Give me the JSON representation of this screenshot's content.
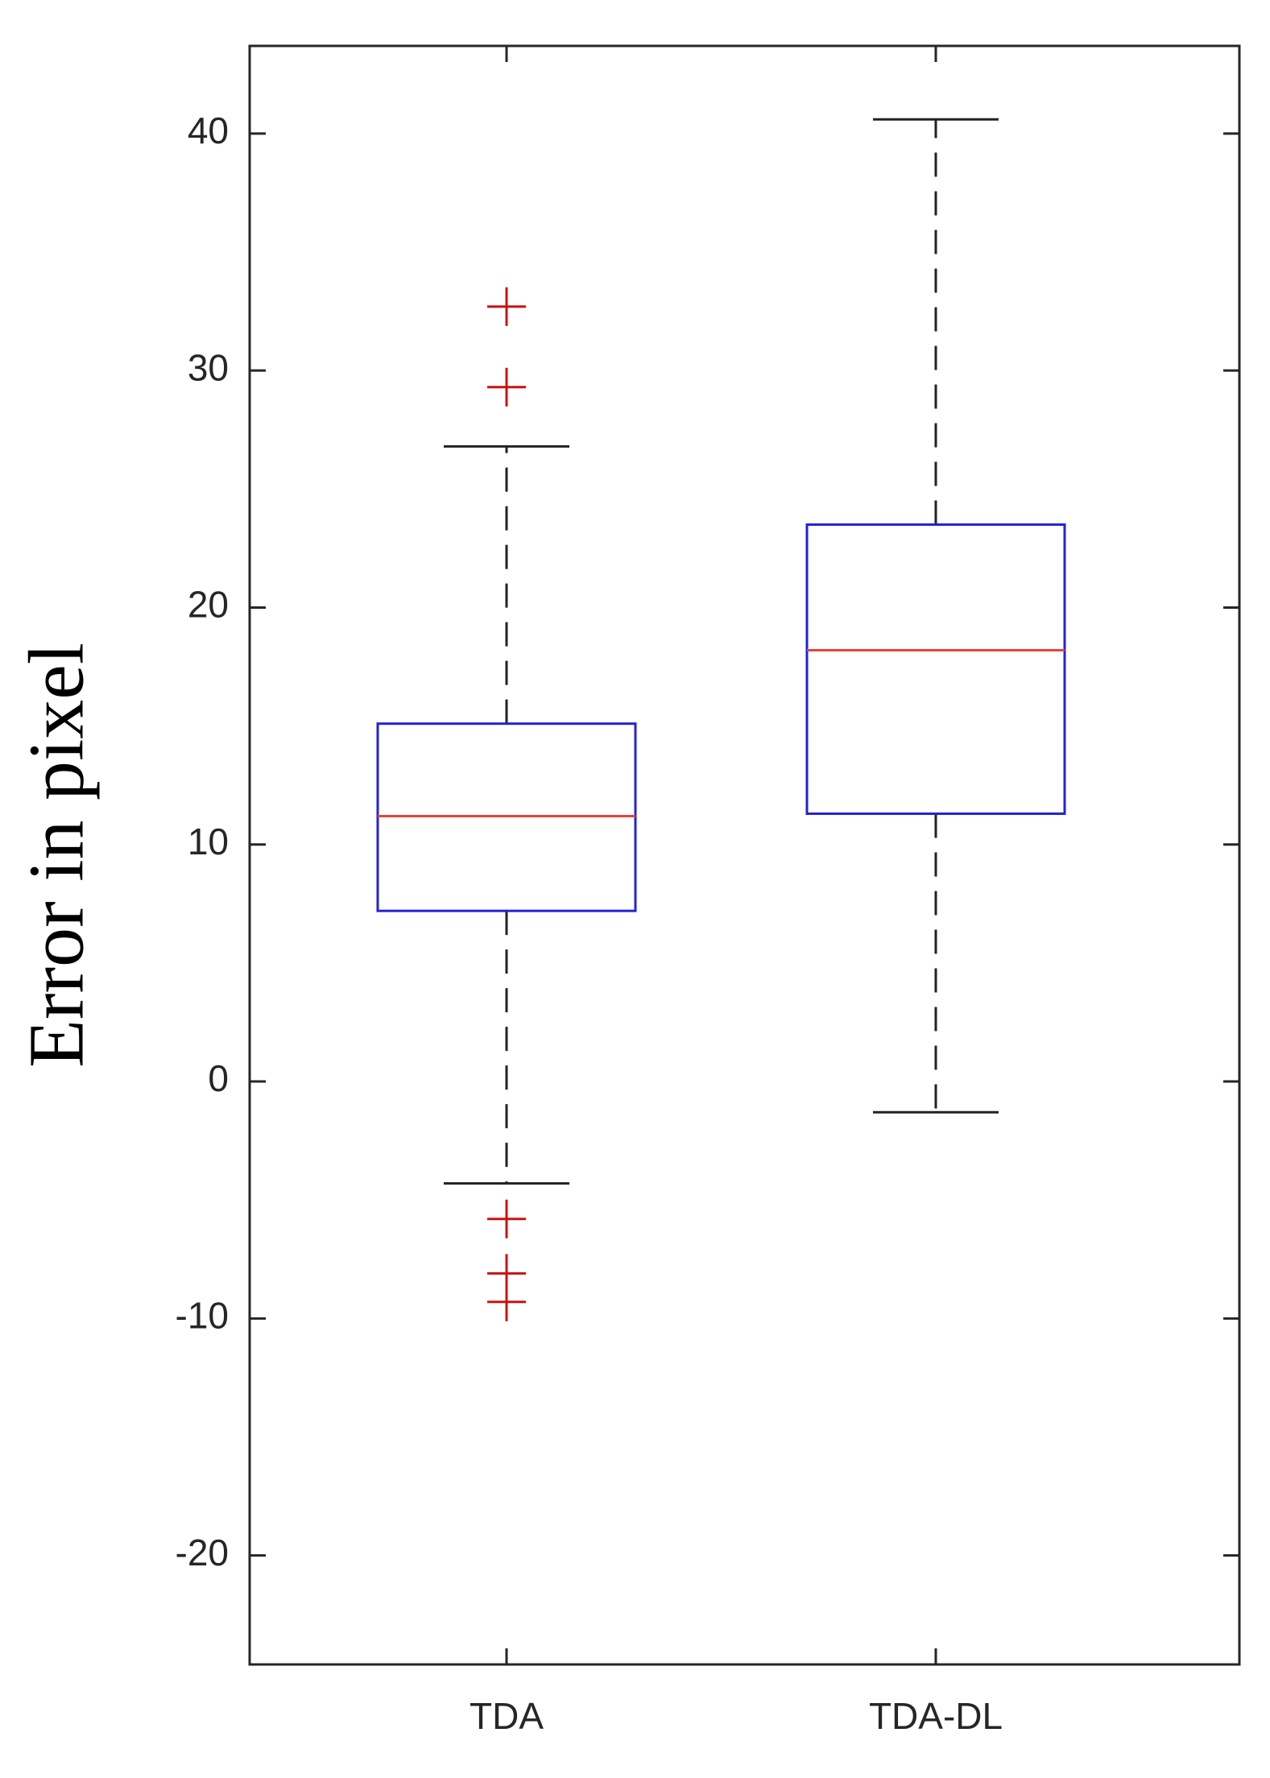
{
  "chart_data": {
    "type": "box",
    "y_label": "Error in pixel",
    "categories": [
      "TDA",
      "TDA-DL"
    ],
    "boxes": [
      {
        "whislo": -4.3,
        "q1": 7.2,
        "med": 11.2,
        "q3": 15.1,
        "whishi": 26.8,
        "outliers": [
          32.7,
          29.3,
          -5.8,
          -8.1,
          -9.3
        ]
      },
      {
        "whislo": -1.3,
        "q1": 11.3,
        "med": 18.2,
        "q3": 23.5,
        "whishi": 40.6,
        "outliers": []
      }
    ],
    "box_color": "#2323d8",
    "median_color": "#e8423a",
    "whisker_color": "#222222",
    "outlier_color": "#cc1111",
    "ylim": [
      -24.6,
      43.7
    ],
    "yticks": [
      -20,
      -10,
      0,
      10,
      20,
      30,
      40
    ]
  }
}
